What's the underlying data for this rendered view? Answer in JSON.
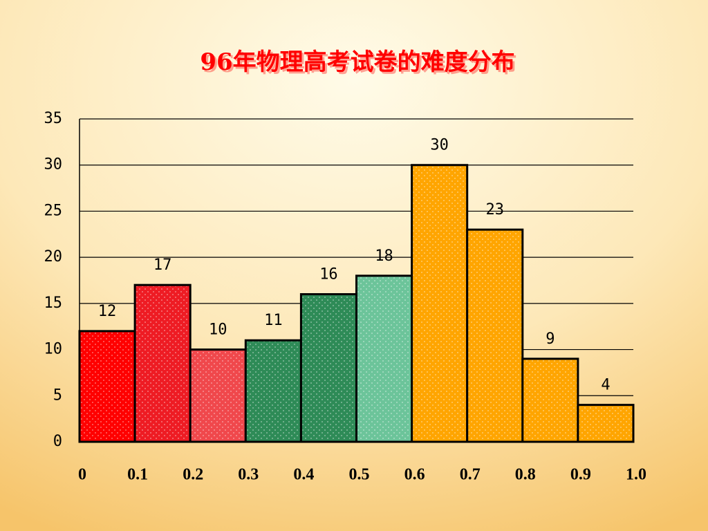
{
  "chart_data": {
    "type": "histogram",
    "title": "96年物理高考试卷的难度分布",
    "bins": [
      0,
      0.1,
      0.2,
      0.3,
      0.4,
      0.5,
      0.6,
      0.7,
      0.8,
      0.9,
      1
    ],
    "values": [
      12,
      17,
      10,
      11,
      16,
      18,
      30,
      23,
      9,
      4
    ],
    "colors": [
      "#ff0000",
      "#ee1c24",
      "#f0484c",
      "#2e8b57",
      "#2e8b57",
      "#6cc49a",
      "#ffa500",
      "#ffa500",
      "#ffa500",
      "#ffa500"
    ],
    "xlim": [
      0,
      1
    ],
    "xticks": [
      0,
      0.1,
      0.2,
      0.3,
      0.4,
      0.5,
      0.6,
      0.7,
      0.8,
      0.9,
      {
        "value": 1,
        "label": "1.0"
      }
    ],
    "ylim": [
      0,
      35
    ],
    "yticks": [
      0,
      5,
      10,
      15,
      20,
      25,
      30,
      35
    ],
    "grid": true
  }
}
